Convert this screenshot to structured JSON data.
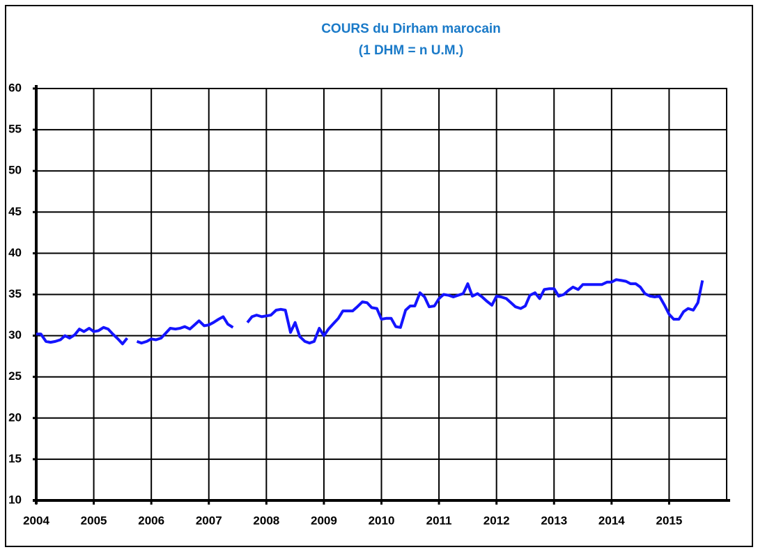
{
  "chart_data": {
    "type": "line",
    "title": "COURS du Dirham marocain",
    "subtitle": "(1 DHM = n U.M.)",
    "x": [
      2004,
      2004.08,
      2004.17,
      2004.25,
      2004.33,
      2004.42,
      2004.5,
      2004.58,
      2004.67,
      2004.75,
      2004.83,
      2004.92,
      2005,
      2005.08,
      2005.17,
      2005.25,
      2005.33,
      2005.42,
      2005.5,
      2005.58,
      2005.67,
      2005.75,
      2005.83,
      2005.92,
      2006,
      2006.08,
      2006.17,
      2006.25,
      2006.33,
      2006.42,
      2006.5,
      2006.58,
      2006.67,
      2006.75,
      2006.83,
      2006.92,
      2007,
      2007.08,
      2007.17,
      2007.25,
      2007.33,
      2007.42,
      2007.5,
      2007.58,
      2007.67,
      2007.75,
      2007.83,
      2007.92,
      2008,
      2008.08,
      2008.17,
      2008.25,
      2008.33,
      2008.42,
      2008.5,
      2008.58,
      2008.67,
      2008.75,
      2008.83,
      2008.92,
      2009,
      2009.08,
      2009.17,
      2009.25,
      2009.33,
      2009.42,
      2009.5,
      2009.58,
      2009.67,
      2009.75,
      2009.83,
      2009.92,
      2010,
      2010.08,
      2010.17,
      2010.25,
      2010.33,
      2010.42,
      2010.5,
      2010.58,
      2010.67,
      2010.75,
      2010.83,
      2010.92,
      2011,
      2011.08,
      2011.17,
      2011.25,
      2011.33,
      2011.42,
      2011.5,
      2011.58,
      2011.67,
      2011.75,
      2011.83,
      2011.92,
      2012,
      2012.08,
      2012.17,
      2012.25,
      2012.33,
      2012.42,
      2012.5,
      2012.58,
      2012.67,
      2012.75,
      2012.83,
      2012.92,
      2013,
      2013.08,
      2013.17,
      2013.25,
      2013.33,
      2013.42,
      2013.5,
      2013.58,
      2013.67,
      2013.75,
      2013.83,
      2013.92,
      2014,
      2014.08,
      2014.17,
      2014.25,
      2014.33,
      2014.42,
      2014.5,
      2014.58,
      2014.67,
      2014.75,
      2014.83,
      2014.92,
      2015,
      2015.08,
      2015.17,
      2015.25,
      2015.33,
      2015.42,
      2015.5,
      2015.58
    ],
    "values": [
      30.2,
      30.2,
      29.3,
      29.2,
      29.3,
      29.5,
      30.0,
      29.7,
      30.1,
      30.8,
      30.5,
      30.9,
      30.5,
      30.6,
      31.0,
      30.8,
      30.2,
      29.6,
      29.0,
      29.7,
      null,
      29.3,
      29.1,
      29.3,
      29.6,
      29.5,
      29.7,
      30.3,
      30.9,
      30.8,
      30.9,
      31.1,
      30.8,
      31.3,
      31.8,
      31.2,
      31.3,
      31.6,
      32.0,
      32.3,
      31.4,
      31.0,
      null,
      null,
      31.6,
      32.3,
      32.5,
      32.3,
      32.4,
      32.5,
      33.1,
      33.2,
      33.1,
      30.4,
      31.6,
      29.9,
      29.3,
      29.1,
      29.3,
      30.9,
      30.0,
      30.8,
      31.5,
      32.1,
      33.0,
      33.0,
      33.0,
      33.5,
      34.1,
      34.0,
      33.4,
      33.3,
      32.0,
      32.1,
      32.1,
      31.1,
      31.0,
      33.1,
      33.6,
      33.6,
      35.2,
      34.7,
      33.5,
      33.6,
      34.5,
      35.0,
      34.9,
      34.7,
      34.9,
      35.1,
      36.3,
      34.8,
      35.1,
      34.7,
      34.2,
      33.7,
      34.8,
      34.7,
      34.5,
      34.0,
      33.5,
      33.3,
      33.6,
      34.9,
      35.2,
      34.5,
      35.6,
      35.7,
      35.7,
      34.8,
      35.0,
      35.5,
      35.9,
      35.6,
      36.2,
      36.2,
      36.2,
      36.2,
      36.2,
      36.5,
      36.5,
      36.8,
      36.7,
      36.6,
      36.3,
      36.3,
      35.9,
      35.1,
      34.8,
      34.7,
      34.8,
      33.7,
      32.6,
      32.0,
      32.0,
      32.9,
      33.3,
      33.1,
      34.0,
      36.7
    ],
    "color": "#1414ff",
    "xlim": [
      2004,
      2016
    ],
    "xticks": [
      2004,
      2005,
      2006,
      2007,
      2008,
      2009,
      2010,
      2011,
      2012,
      2013,
      2014,
      2015
    ],
    "ylim": [
      10,
      60
    ],
    "yticks": [
      10,
      15,
      20,
      25,
      30,
      35,
      40,
      45,
      50,
      55,
      60
    ],
    "grid": true
  }
}
